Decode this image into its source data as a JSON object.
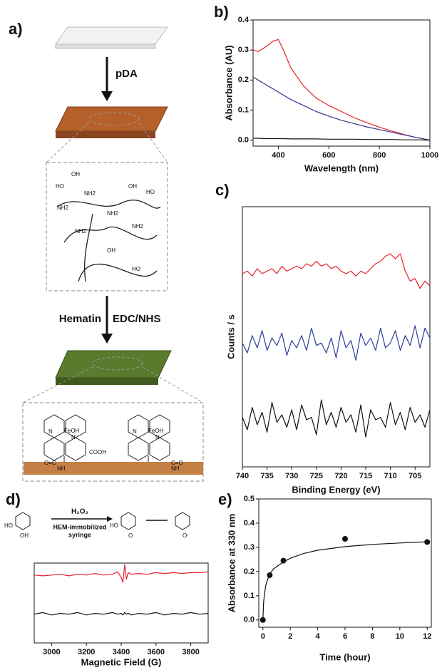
{
  "panel_a": {
    "panel_label": "a)",
    "step1": "pDA",
    "step2_reagent": "Hematin",
    "step2_coupling": "EDC/NHS",
    "pda_labels": [
      "OH",
      "HO",
      "NH2",
      "NH2",
      "NH2",
      "OH",
      "HO",
      "NH2",
      "NH2",
      "OH",
      "HO"
    ],
    "hematin_labels": [
      "N",
      "N",
      "FeOH",
      "COOH",
      "O=C",
      "NH",
      "N",
      "N",
      "FeOH",
      "C=O",
      "NH"
    ]
  },
  "panel_d_scheme": {
    "reagent": "H₂O₂",
    "condition_1": "HEM-immobilized",
    "condition_2": "syringe",
    "atom_labels": [
      "HO",
      "OH",
      "HO",
      "O",
      "O·"
    ]
  },
  "chart_data": [
    {
      "type": "line",
      "panel_label": "b)",
      "x_label": "Wavelength (nm)",
      "y_label": "Absorbance (AU)",
      "x": [
        300,
        320,
        350,
        380,
        400,
        420,
        450,
        500,
        550,
        600,
        650,
        700,
        750,
        800,
        850,
        900,
        950,
        1000
      ],
      "series": [
        {
          "color": "#e8202a",
          "values": [
            0.3,
            0.295,
            0.31,
            0.33,
            0.335,
            0.3,
            0.24,
            0.18,
            0.14,
            0.115,
            0.095,
            0.075,
            0.058,
            0.043,
            0.03,
            0.018,
            0.008,
            0.0
          ]
        },
        {
          "color": "#3c2f8f",
          "values": [
            0.21,
            0.2,
            0.185,
            0.17,
            0.16,
            0.15,
            0.135,
            0.115,
            0.095,
            0.08,
            0.066,
            0.055,
            0.044,
            0.035,
            0.026,
            0.017,
            0.008,
            0.0
          ]
        },
        {
          "color": "#111111",
          "values": [
            0.006,
            0.006,
            0.005,
            0.005,
            0.005,
            0.005,
            0.004,
            0.004,
            0.004,
            0.003,
            0.003,
            0.003,
            0.002,
            0.002,
            0.002,
            0.001,
            0.001,
            0.0
          ]
        }
      ],
      "xlim": [
        300,
        1000
      ],
      "xticks": [
        400,
        600,
        800,
        1000
      ],
      "ylim": [
        -0.02,
        0.4
      ],
      "yticks": [
        {
          "value": 0,
          "label": "0.0"
        },
        0.1,
        0.2,
        0.3,
        0.4
      ]
    },
    {
      "type": "line",
      "panel_label": "c)",
      "x_label": "Binding Energy (eV)",
      "y_label": "Counts / s",
      "x": [
        740,
        739,
        738,
        737,
        736,
        735,
        734,
        733,
        732,
        731,
        730,
        729,
        728,
        727,
        726,
        725,
        724,
        723,
        722,
        721,
        720,
        719,
        718,
        717,
        716,
        715,
        714,
        713,
        712,
        711,
        710,
        709,
        708,
        707,
        706,
        705,
        704,
        703,
        702
      ],
      "series": [
        {
          "color": "#e8202a",
          "values": [
            7.8,
            7.9,
            7.7,
            8.0,
            7.8,
            7.9,
            8.0,
            7.8,
            8.1,
            7.9,
            8.0,
            8.1,
            8.0,
            8.2,
            8.1,
            8.3,
            8.1,
            8.2,
            8.0,
            8.1,
            7.9,
            7.8,
            7.9,
            7.7,
            7.9,
            7.8,
            8.0,
            8.2,
            8.3,
            8.5,
            8.6,
            8.4,
            8.6,
            7.9,
            7.5,
            7.6,
            7.2,
            7.5,
            7.3
          ]
        },
        {
          "color": "#2c3f9e",
          "values": [
            5.0,
            4.6,
            5.3,
            4.8,
            5.5,
            4.7,
            5.2,
            4.9,
            5.4,
            4.5,
            5.1,
            4.8,
            5.3,
            4.7,
            5.6,
            4.9,
            5.0,
            4.6,
            5.2,
            4.4,
            5.5,
            4.8,
            5.1,
            4.3,
            5.4,
            4.9,
            5.2,
            4.7,
            5.6,
            4.8,
            5.0,
            5.5,
            4.7,
            5.3,
            4.9,
            5.7,
            4.8,
            5.6,
            5.2
          ]
        },
        {
          "color": "#111111",
          "values": [
            2.0,
            1.5,
            2.4,
            1.7,
            2.2,
            1.4,
            2.6,
            1.8,
            2.1,
            1.6,
            2.3,
            1.5,
            2.5,
            1.9,
            2.0,
            1.3,
            2.7,
            1.7,
            2.2,
            1.6,
            2.4,
            1.8,
            2.1,
            1.4,
            2.5,
            1.2,
            2.3,
            1.9,
            2.0,
            1.6,
            2.6,
            1.7,
            2.2,
            1.5,
            2.4,
            1.8,
            2.1,
            1.6,
            2.3
          ]
        }
      ],
      "xlim": [
        740,
        702
      ],
      "xticks": [
        740,
        735,
        730,
        725,
        720,
        715,
        710,
        705
      ],
      "ylim": [
        0,
        10.5
      ]
    },
    {
      "type": "line",
      "panel_label": "d)",
      "x_label": "Magnetic Field (G)",
      "x": [
        2900,
        2950,
        3000,
        3050,
        3100,
        3150,
        3200,
        3250,
        3300,
        3350,
        3380,
        3400,
        3410,
        3420,
        3430,
        3440,
        3460,
        3500,
        3550,
        3600,
        3650,
        3700,
        3750,
        3800,
        3850,
        3900
      ],
      "series": [
        {
          "color": "#e8202a",
          "values": [
            8.5,
            8.4,
            8.5,
            8.6,
            8.4,
            8.6,
            8.5,
            8.7,
            8.5,
            8.6,
            8.9,
            8.2,
            7.6,
            9.8,
            8.0,
            8.8,
            8.6,
            8.7,
            8.6,
            8.8,
            8.7,
            8.8,
            8.7,
            8.8,
            8.8,
            8.9
          ]
        },
        {
          "color": "#111111",
          "values": [
            3.6,
            3.8,
            3.5,
            3.7,
            3.6,
            3.8,
            3.5,
            3.7,
            3.6,
            3.8,
            3.6,
            3.7,
            3.5,
            3.8,
            3.6,
            3.7,
            3.5,
            3.7,
            3.6,
            3.8,
            3.5,
            3.7,
            3.6,
            3.8,
            3.6,
            3.7
          ]
        }
      ],
      "xlim": [
        2900,
        3900
      ],
      "xticks": [
        3000,
        3200,
        3400,
        3600,
        3800
      ],
      "ylim": [
        0,
        10
      ]
    },
    {
      "type": "scatter",
      "panel_label": "e)",
      "x_label": "Time (hour)",
      "y_label": "Absorbance at 330 nm",
      "x": [
        0,
        0.5,
        1.5,
        6,
        12
      ],
      "values": [
        0,
        0.185,
        0.245,
        0.335,
        0.322
      ],
      "color": "#111111",
      "fit": {
        "x": [
          0,
          0.05,
          0.1,
          0.2,
          0.3,
          0.5,
          0.75,
          1,
          1.5,
          2,
          3,
          4,
          6,
          8,
          10,
          12
        ],
        "values": [
          0,
          0.07,
          0.1,
          0.14,
          0.16,
          0.19,
          0.21,
          0.22,
          0.24,
          0.255,
          0.275,
          0.288,
          0.303,
          0.312,
          0.318,
          0.323
        ]
      },
      "xlim": [
        -0.3,
        12.3
      ],
      "xticks": [
        0,
        2,
        4,
        6,
        8,
        10,
        12
      ],
      "ylim": [
        -0.03,
        0.5
      ],
      "yticks": [
        {
          "value": 0,
          "label": "0.0"
        },
        0.1,
        0.2,
        0.3,
        0.4,
        0.5
      ]
    }
  ]
}
